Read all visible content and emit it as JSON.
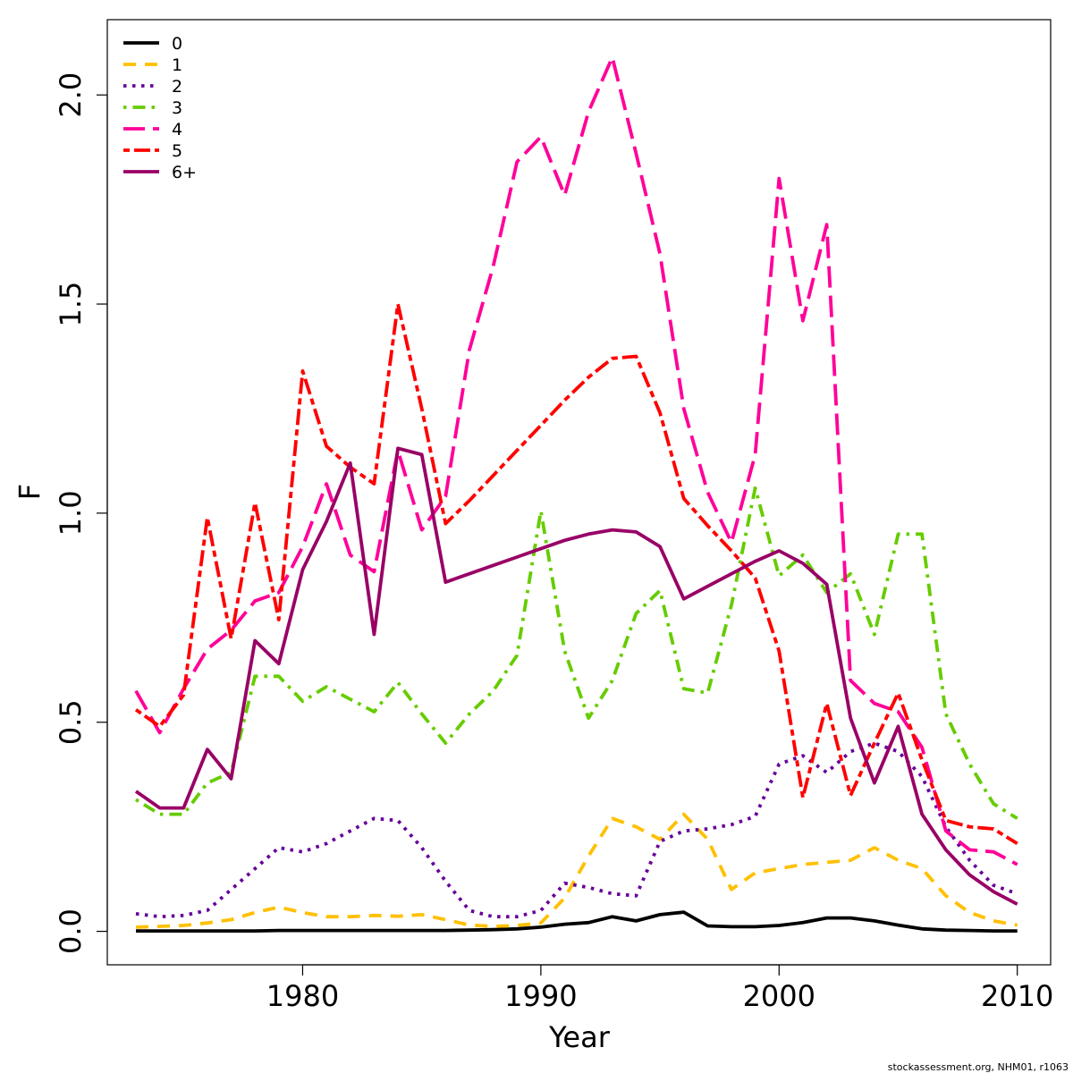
{
  "chart_data": {
    "type": "line",
    "title": "",
    "xlabel": "Year",
    "ylabel": "F",
    "xlim": [
      1971.8,
      2011.4
    ],
    "ylim": [
      -0.08,
      2.18
    ],
    "x_ticks": [
      1980,
      1990,
      2000,
      2010
    ],
    "y_ticks": [
      0.0,
      0.5,
      1.0,
      1.5,
      2.0
    ],
    "x_tick_labels": [
      "1980",
      "1990",
      "2000",
      "2010"
    ],
    "y_tick_labels": [
      "0.0",
      "0.5",
      "1.0",
      "1.5",
      "2.0"
    ],
    "legend_position": "top-left",
    "credit": "stockassessment.org, NHM01, r1063",
    "x": [
      1973,
      1974,
      1975,
      1976,
      1977,
      1978,
      1979,
      1980,
      1981,
      1982,
      1983,
      1984,
      1985,
      1986,
      1987,
      1988,
      1989,
      1990,
      1991,
      1992,
      1993,
      1994,
      1995,
      1996,
      1997,
      1998,
      1999,
      2000,
      2001,
      2002,
      2003,
      2004,
      2005,
      2006,
      2007,
      2008,
      2009,
      2010
    ],
    "series": [
      {
        "name": "0",
        "color": "#000000",
        "dash": "solid",
        "values": [
          0.001,
          0.001,
          0.001,
          0.001,
          0.001,
          0.001,
          0.002,
          0.002,
          0.002,
          0.002,
          0.002,
          0.002,
          0.002,
          0.002,
          0.003,
          0.004,
          0.006,
          0.01,
          0.017,
          0.021,
          0.035,
          0.025,
          0.04,
          0.046,
          0.013,
          0.011,
          0.011,
          0.014,
          0.021,
          0.032,
          0.032,
          0.025,
          0.015,
          0.006,
          0.003,
          0.002,
          0.001,
          0.001
        ]
      },
      {
        "name": "1",
        "color": "#FFC000",
        "dash": "dashed",
        "values": [
          0.01,
          0.012,
          0.014,
          0.02,
          0.028,
          0.045,
          0.058,
          0.045,
          0.035,
          0.035,
          0.038,
          0.036,
          0.04,
          0.028,
          0.015,
          0.012,
          0.014,
          0.02,
          0.08,
          0.18,
          0.27,
          0.25,
          0.22,
          0.28,
          0.22,
          0.1,
          0.14,
          0.15,
          0.16,
          0.165,
          0.17,
          0.2,
          0.17,
          0.15,
          0.085,
          0.045,
          0.025,
          0.015
        ]
      },
      {
        "name": "2",
        "color": "#660099",
        "dash": "dotted",
        "values": [
          0.042,
          0.035,
          0.038,
          0.05,
          0.1,
          0.15,
          0.2,
          0.19,
          0.21,
          0.24,
          0.27,
          0.265,
          0.2,
          0.12,
          0.05,
          0.035,
          0.035,
          0.05,
          0.115,
          0.105,
          0.09,
          0.085,
          0.215,
          0.24,
          0.245,
          0.255,
          0.275,
          0.4,
          0.42,
          0.38,
          0.43,
          0.45,
          0.43,
          0.37,
          0.25,
          0.17,
          0.11,
          0.09
        ]
      },
      {
        "name": "3",
        "color": "#66CC00",
        "dash": "dotdash",
        "values": [
          0.315,
          0.28,
          0.28,
          0.355,
          0.38,
          0.61,
          0.61,
          0.55,
          0.585,
          0.555,
          0.525,
          0.595,
          0.52,
          0.45,
          0.52,
          0.575,
          0.66,
          1.005,
          0.67,
          0.51,
          0.6,
          0.76,
          0.815,
          0.58,
          0.57,
          0.78,
          1.06,
          0.85,
          0.9,
          0.81,
          0.855,
          0.71,
          0.95,
          0.95,
          0.52,
          0.4,
          0.305,
          0.27
        ]
      },
      {
        "name": "4",
        "color": "#FF0099",
        "dash": "longdash",
        "values": [
          0.575,
          0.475,
          0.58,
          0.675,
          0.72,
          0.79,
          0.81,
          0.92,
          1.07,
          0.9,
          0.86,
          1.15,
          0.96,
          1.04,
          1.39,
          1.59,
          1.84,
          1.9,
          1.76,
          1.96,
          2.09,
          1.86,
          1.62,
          1.25,
          1.05,
          0.93,
          1.14,
          1.8,
          1.46,
          1.69,
          0.6,
          0.545,
          0.525,
          0.44,
          0.24,
          0.195,
          0.19,
          0.16
        ]
      },
      {
        "name": "5",
        "color": "#FF0000",
        "dash": "twodash",
        "values": [
          0.53,
          0.49,
          0.565,
          0.99,
          0.7,
          1.025,
          0.745,
          1.34,
          1.16,
          1.11,
          1.07,
          1.5,
          1.25,
          0.975,
          1.03,
          1.09,
          1.15,
          1.21,
          1.27,
          1.325,
          1.37,
          1.375,
          1.24,
          1.035,
          0.97,
          0.91,
          0.845,
          0.67,
          0.32,
          0.545,
          0.325,
          0.45,
          0.57,
          0.41,
          0.265,
          0.25,
          0.245,
          0.21
        ]
      },
      {
        "name": "6+",
        "color": "#990066",
        "dash": "solid",
        "values": [
          0.335,
          0.295,
          0.295,
          0.435,
          0.365,
          0.695,
          0.64,
          0.865,
          0.98,
          1.12,
          0.71,
          1.155,
          1.14,
          0.835,
          0.855,
          0.875,
          0.895,
          0.915,
          0.935,
          0.95,
          0.96,
          0.955,
          0.92,
          0.795,
          0.825,
          0.855,
          0.885,
          0.91,
          0.88,
          0.83,
          0.51,
          0.355,
          0.49,
          0.28,
          0.195,
          0.135,
          0.095,
          0.065
        ]
      }
    ]
  }
}
